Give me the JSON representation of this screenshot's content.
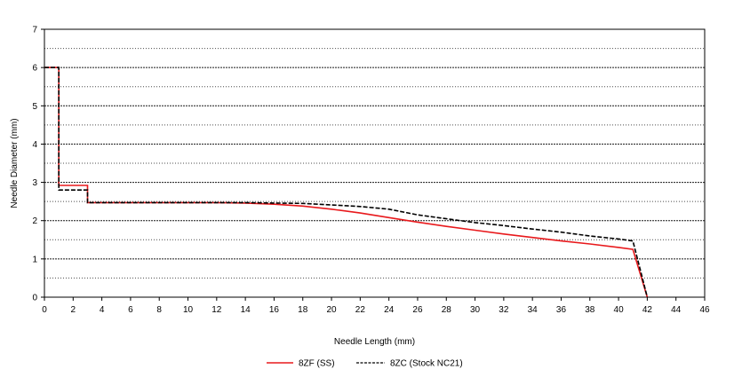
{
  "chart_data": {
    "type": "line",
    "title": "",
    "xlabel": "Needle Length (mm)",
    "ylabel": "Needle Diameter (mm)",
    "xlim": [
      0,
      46
    ],
    "ylim": [
      0,
      7
    ],
    "xticks": [
      0,
      2,
      4,
      6,
      8,
      10,
      12,
      14,
      16,
      18,
      20,
      22,
      24,
      26,
      28,
      30,
      32,
      34,
      36,
      38,
      40,
      42,
      44,
      46
    ],
    "yticks": [
      0,
      1,
      2,
      3,
      4,
      5,
      6,
      7
    ],
    "grid": "horizontal dashed every 0.5",
    "legend_position": "bottom",
    "series": [
      {
        "name": "8ZF (SS)",
        "color": "#e8191c",
        "style": "solid",
        "points": [
          [
            0,
            6.0
          ],
          [
            1.0,
            6.0
          ],
          [
            1.0,
            2.92
          ],
          [
            3.0,
            2.92
          ],
          [
            3.0,
            2.47
          ],
          [
            12,
            2.47
          ],
          [
            14,
            2.46
          ],
          [
            16,
            2.43
          ],
          [
            18,
            2.38
          ],
          [
            20,
            2.3
          ],
          [
            22,
            2.2
          ],
          [
            24,
            2.08
          ],
          [
            26,
            1.96
          ],
          [
            28,
            1.85
          ],
          [
            30,
            1.75
          ],
          [
            32,
            1.65
          ],
          [
            34,
            1.56
          ],
          [
            36,
            1.47
          ],
          [
            38,
            1.39
          ],
          [
            40,
            1.3
          ],
          [
            41,
            1.25
          ],
          [
            42,
            0.0
          ]
        ]
      },
      {
        "name": "8ZC (Stock NC21)",
        "color": "#000000",
        "style": "dashed",
        "points": [
          [
            0,
            6.0
          ],
          [
            1.0,
            6.0
          ],
          [
            1.0,
            2.8
          ],
          [
            3.0,
            2.8
          ],
          [
            3.0,
            2.47
          ],
          [
            14,
            2.47
          ],
          [
            16,
            2.46
          ],
          [
            18,
            2.45
          ],
          [
            20,
            2.41
          ],
          [
            22,
            2.37
          ],
          [
            24,
            2.3
          ],
          [
            26,
            2.15
          ],
          [
            28,
            2.05
          ],
          [
            30,
            1.95
          ],
          [
            32,
            1.87
          ],
          [
            34,
            1.78
          ],
          [
            36,
            1.7
          ],
          [
            38,
            1.6
          ],
          [
            40,
            1.52
          ],
          [
            41,
            1.47
          ],
          [
            42,
            0.0
          ]
        ]
      }
    ]
  }
}
